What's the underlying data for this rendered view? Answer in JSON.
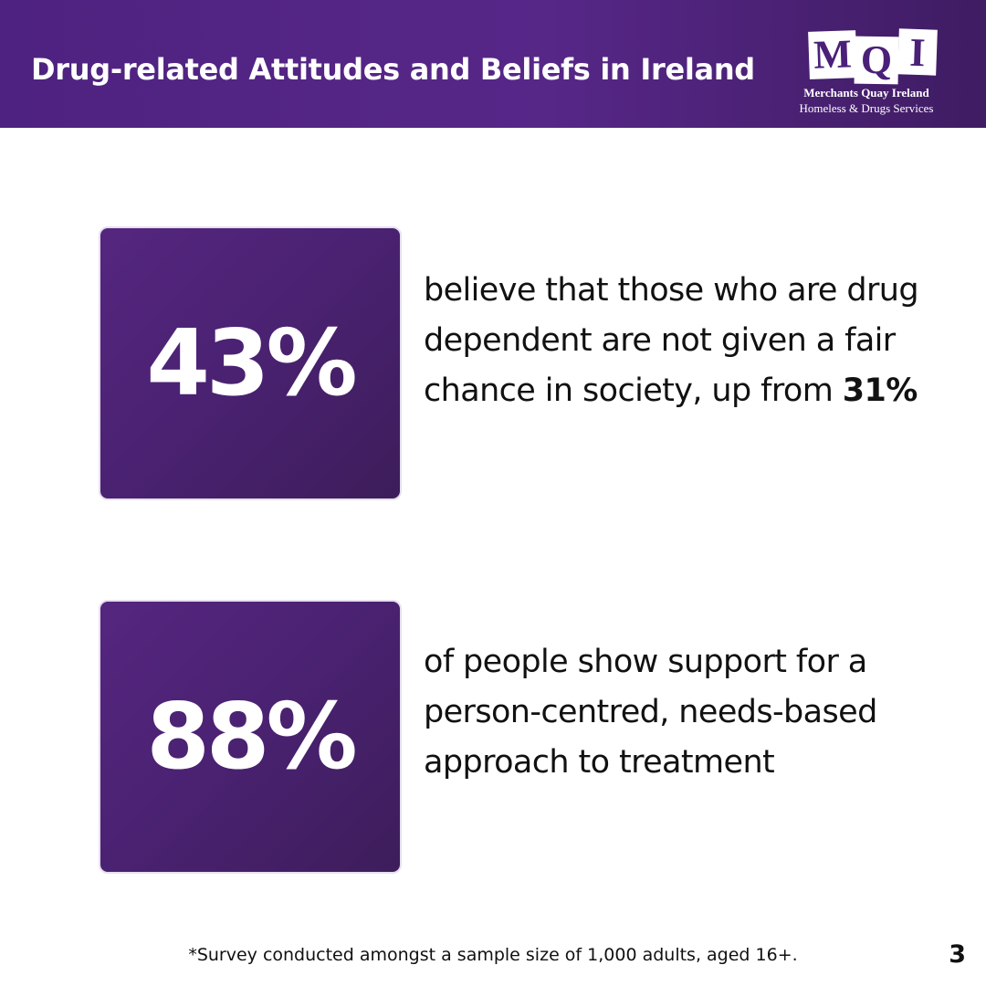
{
  "header": {
    "title": "Drug-related Attitudes and Beliefs in Ireland",
    "background_color": "#4e2280"
  },
  "logo": {
    "letters": [
      "M",
      "Q",
      "I"
    ],
    "name": "Merchants Quay Ireland",
    "tagline": "Homeless & Drugs Services"
  },
  "stats": [
    {
      "value": "43%",
      "text_before": "believe that those who are drug dependent are not given a fair chance in society, up from ",
      "text_bold": "31%",
      "text_after": ""
    },
    {
      "value": "88%",
      "text_before": "of people show support for a person-centred, needs-based approach to treatment",
      "text_bold": "",
      "text_after": ""
    }
  ],
  "footer": {
    "note": "*Survey conducted amongst a sample size of 1,000 adults, aged 16+.",
    "page_number": "3"
  },
  "colors": {
    "accent_purple": "#4b2273",
    "text": "#111111",
    "background": "#ffffff"
  }
}
